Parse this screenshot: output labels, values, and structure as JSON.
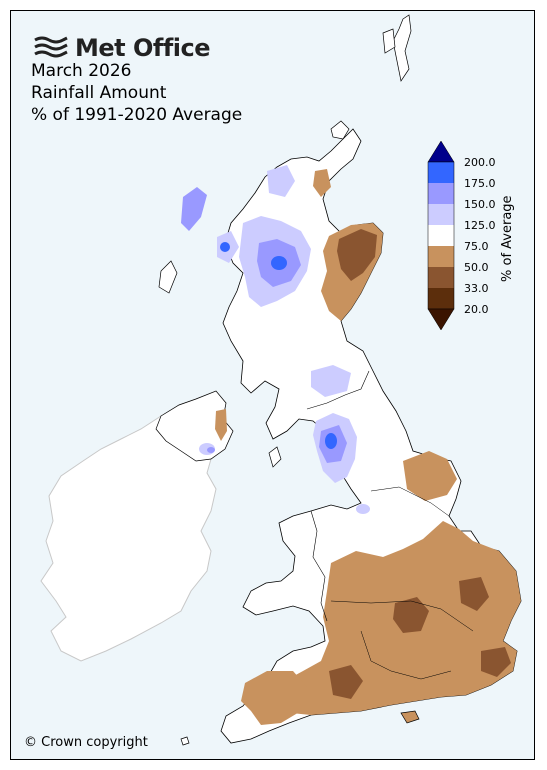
{
  "brand": {
    "name": "Met Office",
    "logo_icon": "met-office-wave-icon"
  },
  "title": {
    "line1": "March 2026",
    "line2": "Rainfall Amount",
    "line3": "% of 1991-2020 Average"
  },
  "legend": {
    "axis_label": "% of Average",
    "ticks": [
      "200.0",
      "175.0",
      "150.0",
      "125.0",
      "75.0",
      "50.0",
      "33.0",
      "20.0"
    ],
    "bins": [
      {
        "range": "> 200.0",
        "color": "#00008b"
      },
      {
        "range": "175.0-200.0",
        "color": "#3366ff"
      },
      {
        "range": "150.0-175.0",
        "color": "#9999ff"
      },
      {
        "range": "125.0-150.0",
        "color": "#ccccff"
      },
      {
        "range": "75.0-125.0",
        "color": "#ffffff"
      },
      {
        "range": "50.0-75.0",
        "color": "#c8925e"
      },
      {
        "range": "33.0-50.0",
        "color": "#8a5530"
      },
      {
        "range": "20.0-33.0",
        "color": "#5c2e0c"
      },
      {
        "range": "< 20.0",
        "color": "#3b1400"
      }
    ]
  },
  "colors": {
    "sea": "#eef6fa",
    "ireland_land": "#ffffff",
    "ireland_outline": "#cccccc"
  },
  "copyright": "© Crown copyright"
}
